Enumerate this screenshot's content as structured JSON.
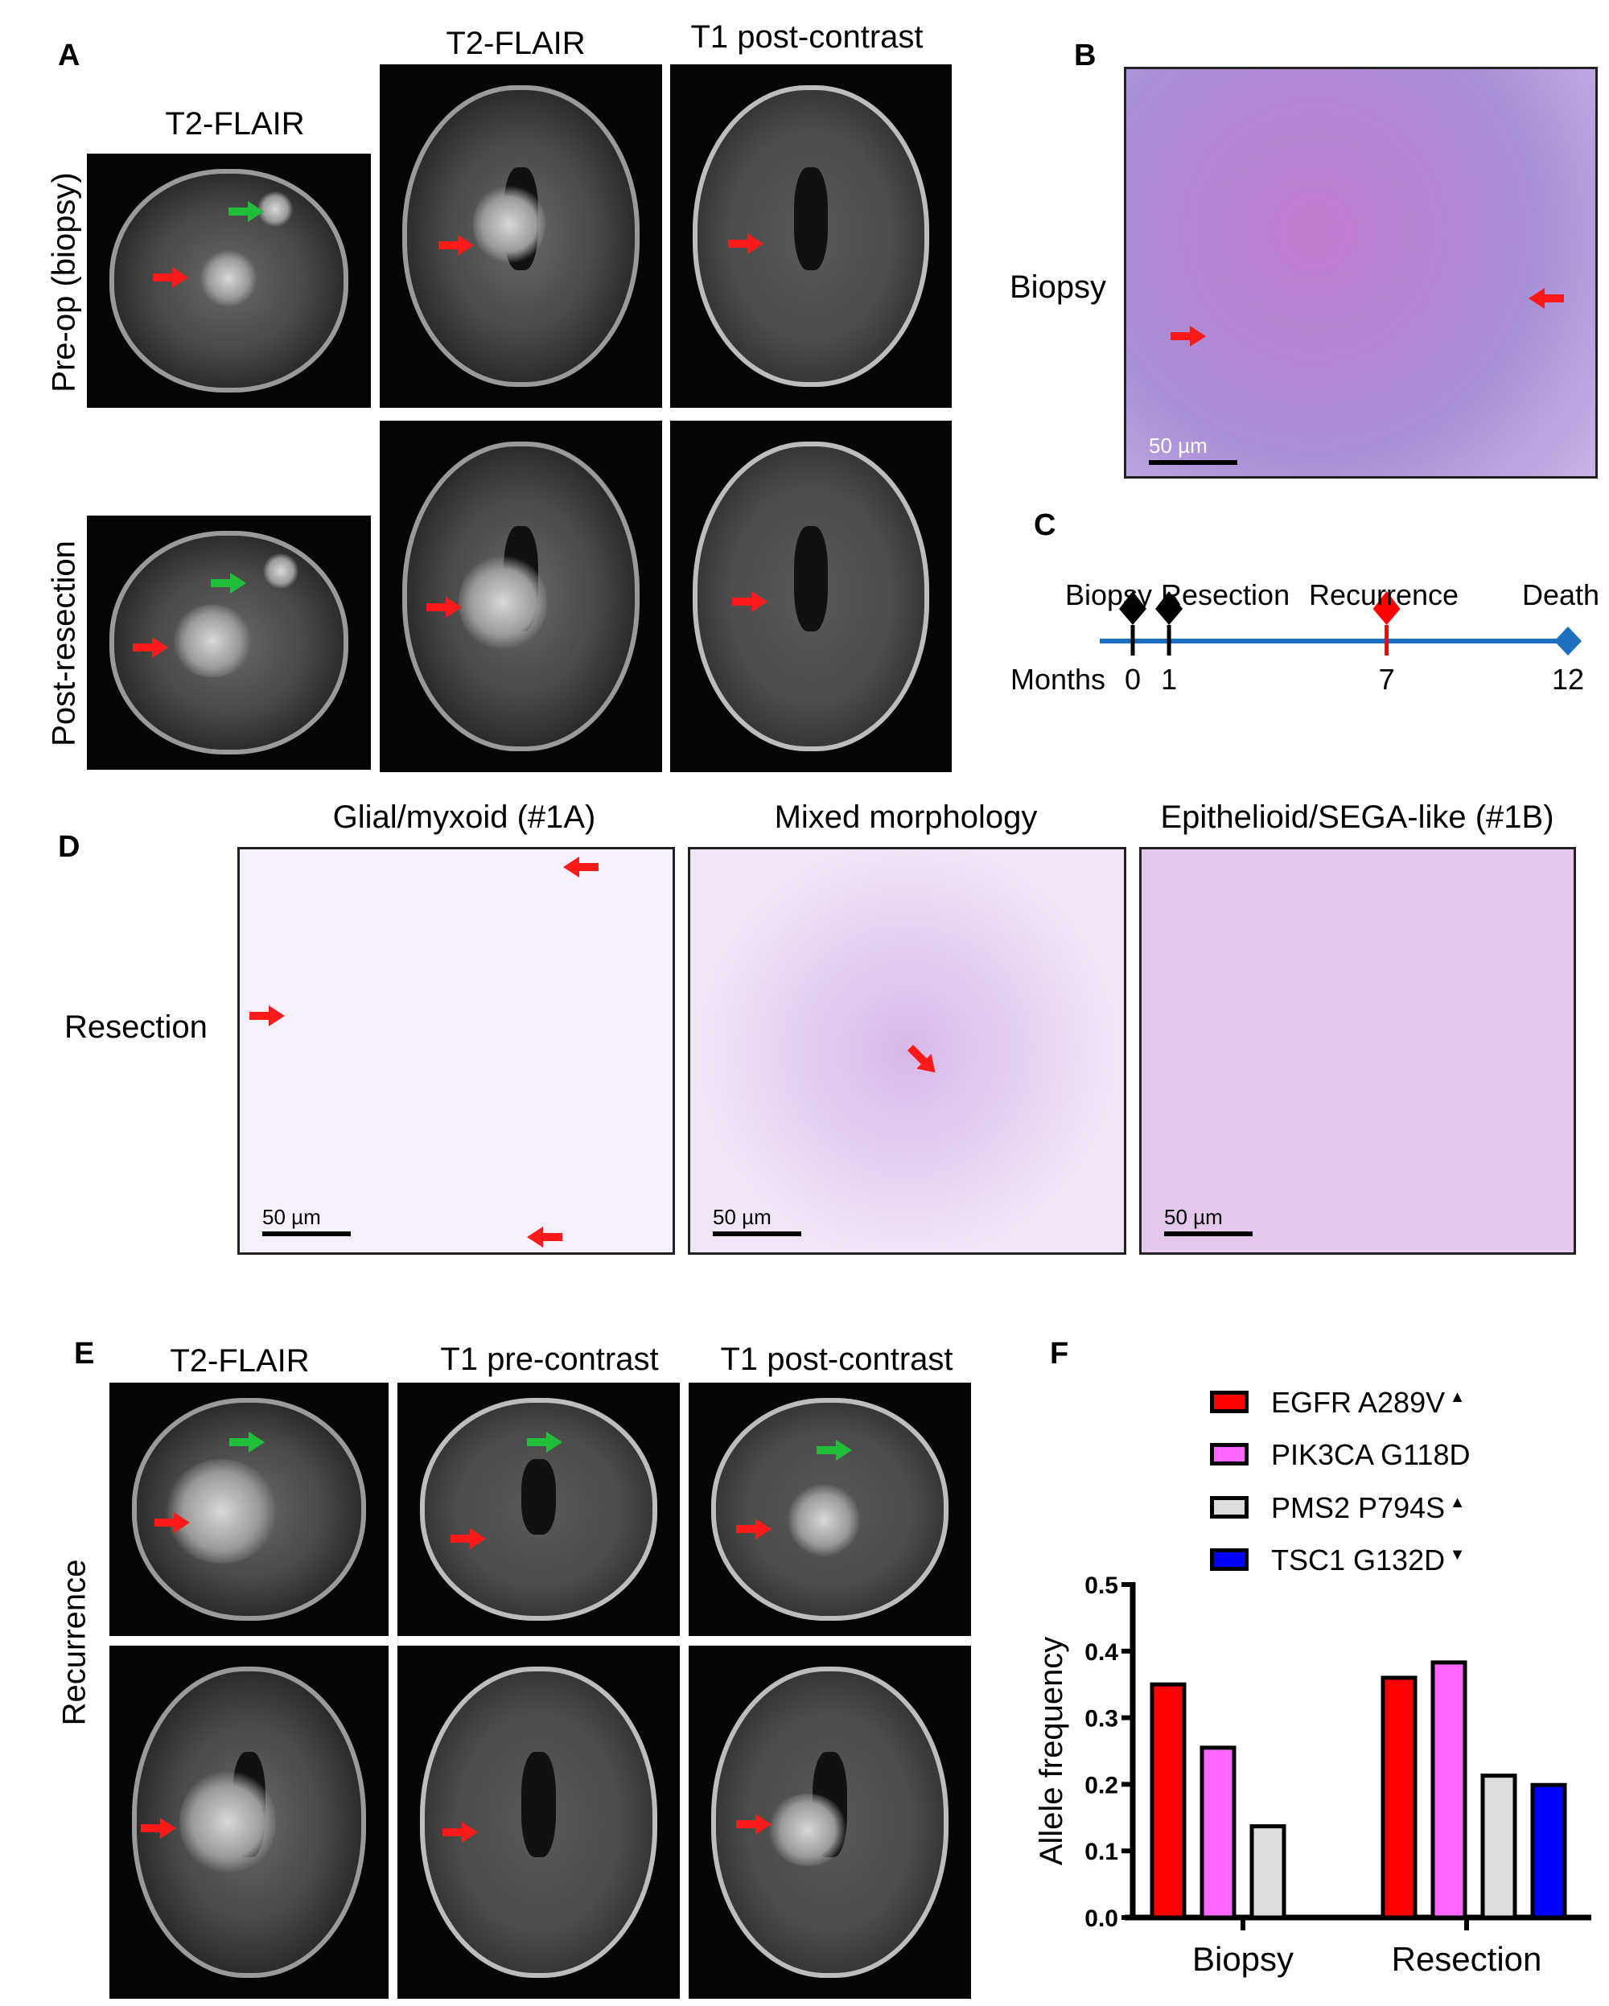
{
  "panels": {
    "a": {
      "label": "A",
      "col_titles": [
        "T2-FLAIR",
        "T2-FLAIR",
        "T1 post-contrast"
      ],
      "row_labels": [
        "Pre-op (biopsy)",
        "Post-resection"
      ]
    },
    "b": {
      "label": "B",
      "row_label": "Biopsy",
      "scale_bar": "50 µm"
    },
    "c": {
      "label": "C",
      "axis_label": "Months",
      "line_color": "#1f6fbf",
      "events": [
        {
          "name": "Biopsy",
          "month": 0,
          "color": "#000000"
        },
        {
          "name": "Resection",
          "month": 1,
          "color": "#000000"
        },
        {
          "name": "Recurrence",
          "month": 7,
          "color": "#ff0000"
        },
        {
          "name": "Death",
          "month": 12,
          "color": "#1f6fbf"
        }
      ],
      "tick_labels": [
        "0",
        "1",
        "7",
        "12"
      ]
    },
    "d": {
      "label": "D",
      "row_label": "Resection",
      "col_titles": [
        "Glial/myxoid (#1A)",
        "Mixed morphology",
        "Epithelioid/SEGA-like (#1B)"
      ],
      "scale_bar": "50 µm"
    },
    "e": {
      "label": "E",
      "col_titles": [
        "T2-FLAIR",
        "T1 pre-contrast",
        "T1 post-contrast"
      ],
      "row_label": "Recurrence"
    },
    "f": {
      "label": "F"
    }
  },
  "chart_data": {
    "type": "bar",
    "categories": [
      "Biopsy",
      "Resection"
    ],
    "ylabel": "Allele frequency",
    "ylim": [
      0,
      0.5
    ],
    "yticks": [
      "0.0",
      "0.1",
      "0.2",
      "0.3",
      "0.4",
      "0.5"
    ],
    "legend_position": "top",
    "series": [
      {
        "name": "EGFR A289V",
        "marker": "▲",
        "color": "#ff0000",
        "values": [
          0.35,
          0.36
        ]
      },
      {
        "name": "PIK3CA G118D",
        "marker": "",
        "color": "#ff66ff",
        "values": [
          0.255,
          0.383
        ]
      },
      {
        "name": "PMS2 P794S",
        "marker": "▲",
        "color": "#dddddd",
        "values": [
          0.137,
          0.213
        ]
      },
      {
        "name": "TSC1 G132D",
        "marker": "▼",
        "color": "#0000ff",
        "values": [
          null,
          0.199
        ]
      }
    ]
  }
}
